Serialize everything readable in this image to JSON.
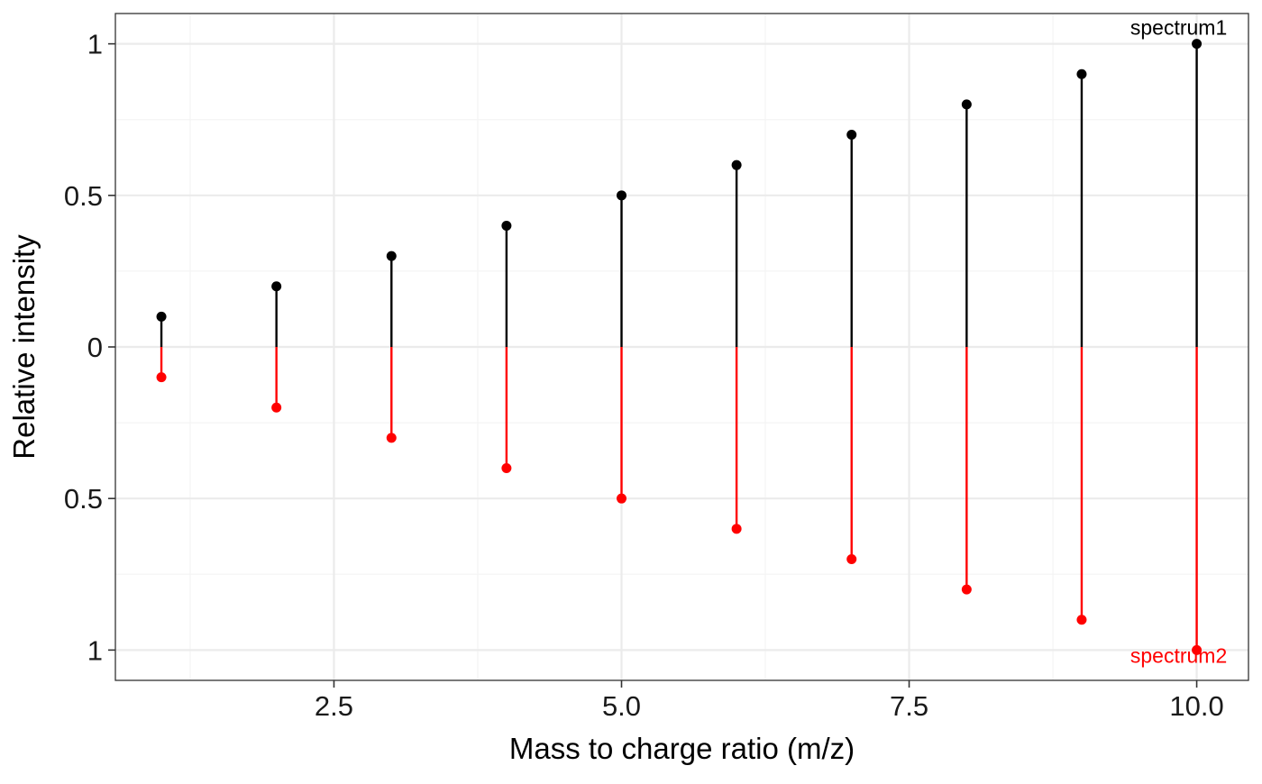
{
  "colors": {
    "background": "#ffffff",
    "panel_border": "#333333",
    "grid_major": "#ebebeb",
    "grid_minor": "#f4f4f4",
    "tick": "#333333"
  },
  "chart_data": {
    "type": "mirror-stem",
    "title": "",
    "xlabel": "Mass to charge ratio (m/z)",
    "ylabel": "Relative intensity",
    "xlim": [
      0.6,
      10.45
    ],
    "ylim": [
      -1.1,
      1.1
    ],
    "x_ticks": [
      2.5,
      5.0,
      7.5,
      10.0
    ],
    "x_tick_labels": [
      "2.5",
      "5.0",
      "7.5",
      "10.0"
    ],
    "x_minor_ticks": [
      1.25,
      3.75,
      6.25,
      8.75
    ],
    "y_ticks": [
      1,
      0.5,
      0,
      -0.5,
      -1
    ],
    "y_tick_labels": [
      "1",
      "0.5",
      "0",
      "0.5",
      "1"
    ],
    "y_minor_ticks": [
      0.75,
      0.25,
      -0.25,
      -0.75
    ],
    "grid": true,
    "series": [
      {
        "label": "spectrum1",
        "color": "#000000",
        "direction": "up",
        "x": [
          1,
          2,
          3,
          4,
          5,
          6,
          7,
          8,
          9,
          10
        ],
        "y": [
          0.1,
          0.2,
          0.3,
          0.4,
          0.5,
          0.6,
          0.7,
          0.8,
          0.9,
          1.0
        ]
      },
      {
        "label": "spectrum2",
        "color": "#ff0000",
        "direction": "down",
        "x": [
          1,
          2,
          3,
          4,
          5,
          6,
          7,
          8,
          9,
          10
        ],
        "y": [
          0.1,
          0.2,
          0.3,
          0.4,
          0.5,
          0.6,
          0.7,
          0.8,
          0.9,
          1.0
        ]
      }
    ]
  }
}
